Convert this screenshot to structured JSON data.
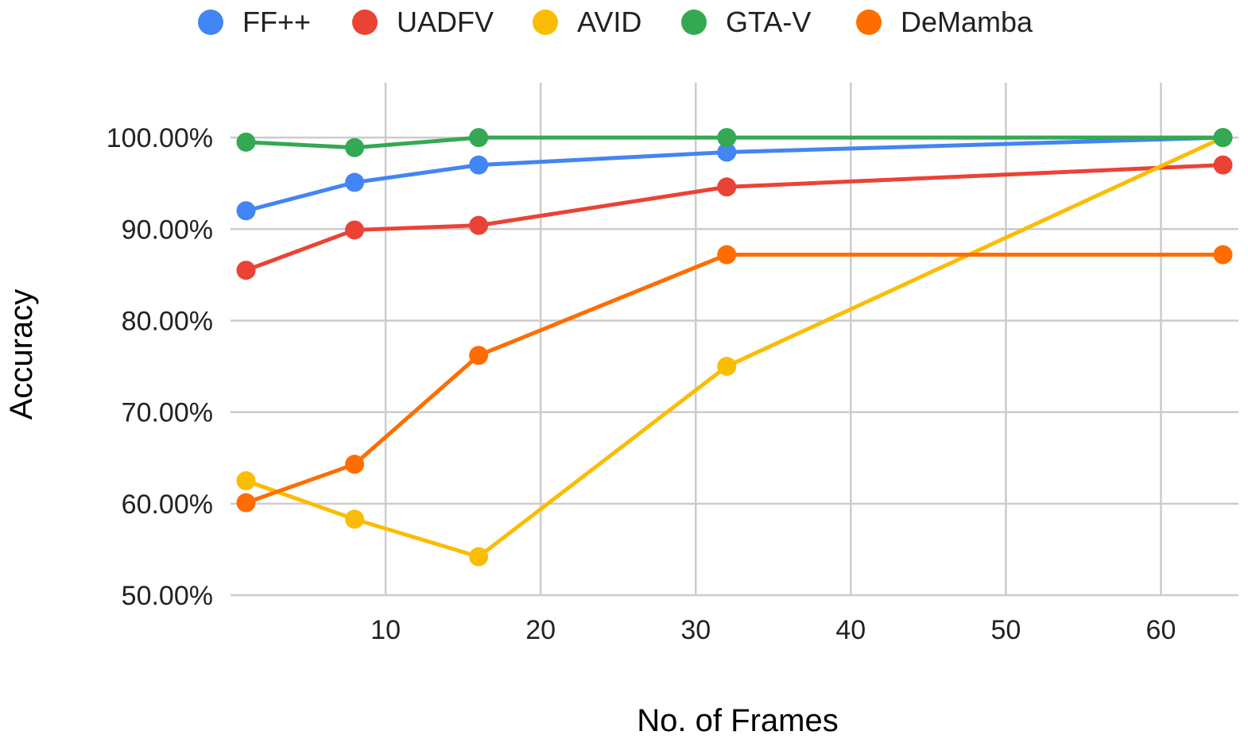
{
  "chart_data": {
    "type": "line",
    "title": "",
    "xlabel": "No. of Frames",
    "ylabel": "Accuracy",
    "xlim": [
      0,
      65
    ],
    "ylim": [
      0.5,
      1.06
    ],
    "x_ticks": [
      10,
      20,
      30,
      40,
      50,
      60
    ],
    "x_tick_labels": [
      "10",
      "20",
      "30",
      "40",
      "50",
      "60"
    ],
    "y_ticks": [
      0.5,
      0.6,
      0.7,
      0.8,
      0.9,
      1.0
    ],
    "y_tick_labels": [
      "50.00%",
      "60.00%",
      "70.00%",
      "80.00%",
      "90.00%",
      "100.00%"
    ],
    "grid": true,
    "legend_position": "top",
    "x": [
      1,
      8,
      16,
      32,
      64
    ],
    "series": [
      {
        "name": "FF++",
        "color": "#4285F4",
        "values": [
          0.92,
          0.951,
          0.97,
          0.984,
          1.0
        ]
      },
      {
        "name": "UADFV",
        "color": "#EA4335",
        "values": [
          0.855,
          0.899,
          0.904,
          0.946,
          0.97
        ]
      },
      {
        "name": "AVID",
        "color": "#FBBC04",
        "values": [
          0.625,
          0.583,
          0.542,
          0.75,
          1.0
        ]
      },
      {
        "name": "GTA-V",
        "color": "#34A853",
        "values": [
          0.995,
          0.989,
          1.0,
          1.0,
          1.0
        ]
      },
      {
        "name": "DeMamba",
        "color": "#FF6D01",
        "values": [
          0.601,
          0.643,
          0.762,
          0.872,
          0.872
        ]
      }
    ]
  }
}
